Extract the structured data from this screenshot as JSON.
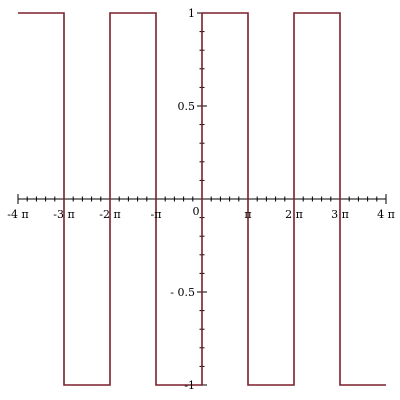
{
  "chart_data": {
    "type": "line",
    "title": "",
    "xlabel": "",
    "ylabel": "",
    "xlim_pi": [
      -4,
      4
    ],
    "ylim": [
      -1,
      1
    ],
    "x_ticks": [
      {
        "value_pi": -4,
        "label": "-4 π"
      },
      {
        "value_pi": -3,
        "label": "-3 π"
      },
      {
        "value_pi": -2,
        "label": "-2 π"
      },
      {
        "value_pi": -1,
        "label": "-π"
      },
      {
        "value_pi": 1,
        "label": "π"
      },
      {
        "value_pi": 2,
        "label": "2 π"
      },
      {
        "value_pi": 3,
        "label": "3 π"
      },
      {
        "value_pi": 4,
        "label": "4 π"
      }
    ],
    "origin_label": "0",
    "y_ticks": [
      {
        "value": 1,
        "label": "1"
      },
      {
        "value": 0.5,
        "label": "0.5"
      },
      {
        "value": -0.5,
        "label": "- 0.5"
      },
      {
        "value": -1,
        "label": "-1"
      }
    ],
    "series": [
      {
        "color": "#7a1f2b",
        "step_points": [
          {
            "x_pi": -4,
            "y": 1
          },
          {
            "x_pi": -3,
            "y": 1
          },
          {
            "x_pi": -3,
            "y": -1
          },
          {
            "x_pi": -2,
            "y": -1
          },
          {
            "x_pi": -2,
            "y": 1
          },
          {
            "x_pi": -1,
            "y": 1
          },
          {
            "x_pi": -1,
            "y": -1
          },
          {
            "x_pi": 0,
            "y": -1
          },
          {
            "x_pi": 0,
            "y": 1
          },
          {
            "x_pi": 1,
            "y": 1
          },
          {
            "x_pi": 1,
            "y": -1
          },
          {
            "x_pi": 2,
            "y": -1
          },
          {
            "x_pi": 2,
            "y": 1
          },
          {
            "x_pi": 3,
            "y": 1
          },
          {
            "x_pi": 3,
            "y": -1
          },
          {
            "x_pi": 4,
            "y": -1
          }
        ]
      }
    ],
    "grid": false,
    "legend": "none"
  }
}
